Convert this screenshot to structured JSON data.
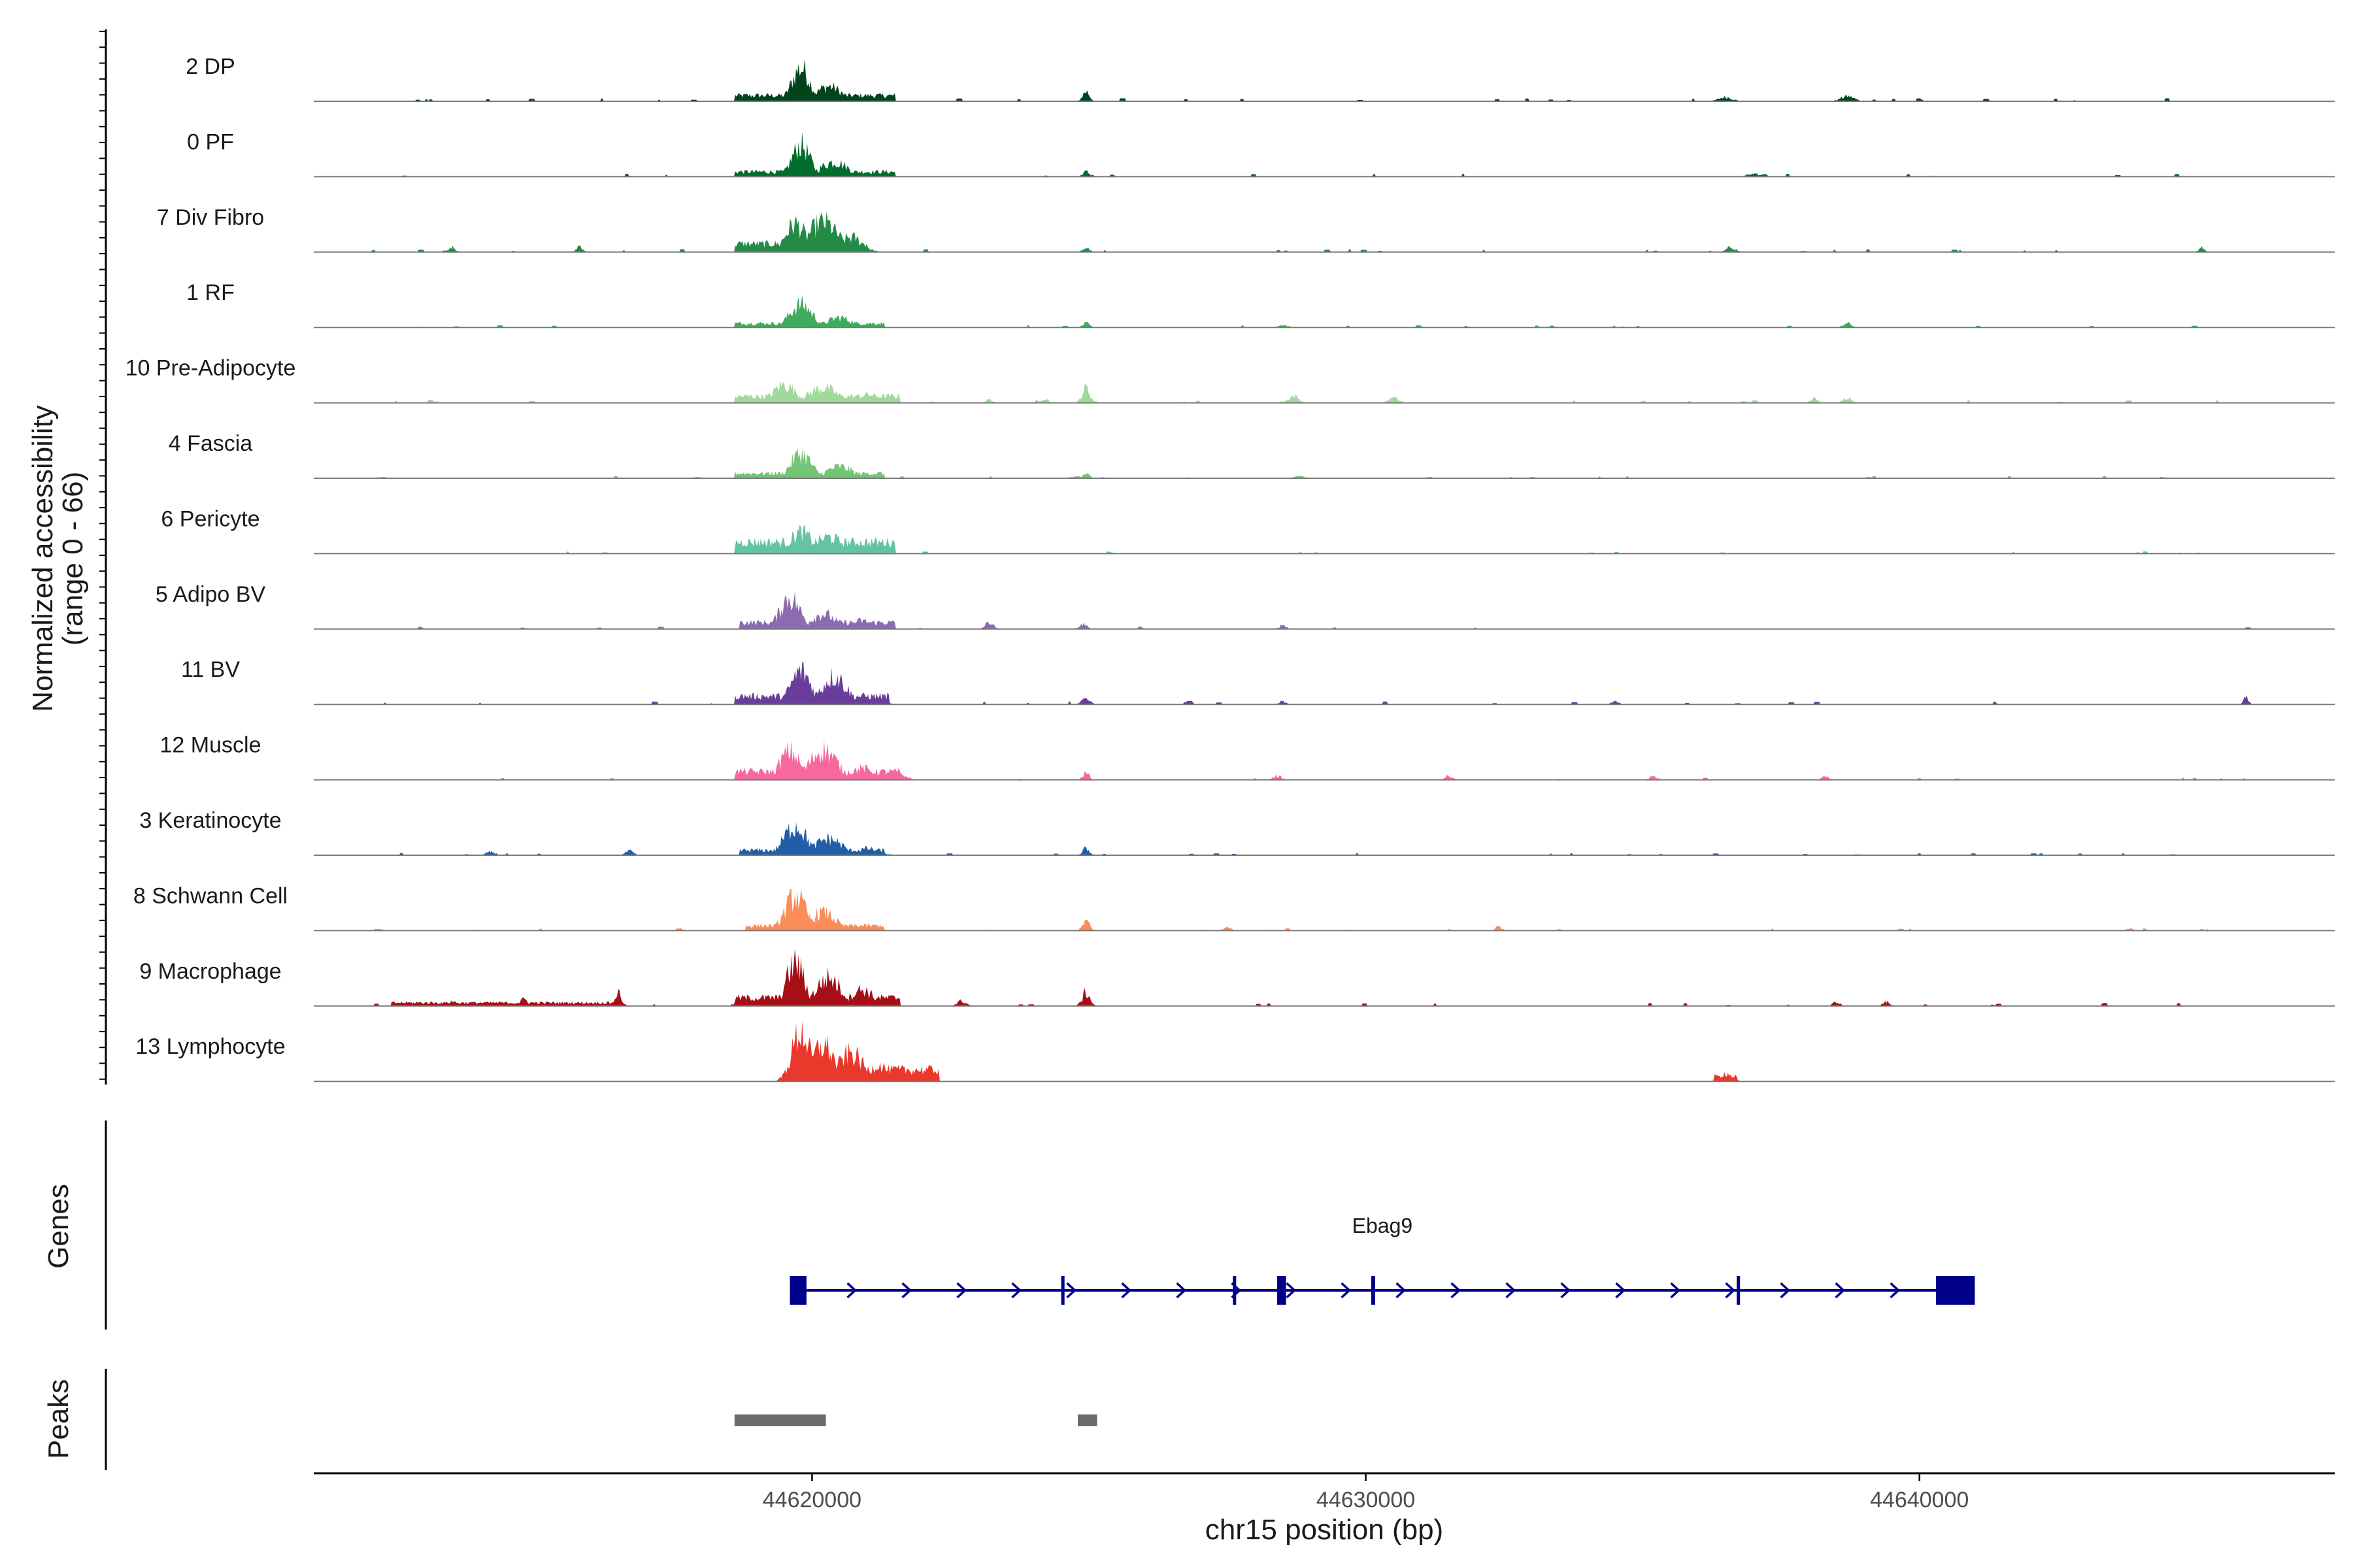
{
  "chart_data": {
    "type": "area",
    "title": "",
    "ylabel_line1": "Normalized accessibility",
    "ylabel_line2": "(range 0 - 66)",
    "y_range": [
      0,
      66
    ],
    "xlabel": "chr15 position (bp)",
    "x_range": [
      44611000,
      44647500
    ],
    "x_ticks": [
      44620000,
      44630000,
      44640000
    ],
    "x_tick_labels": [
      "44620000",
      "44630000",
      "44640000"
    ],
    "tracks": [
      {
        "label": "2 DP",
        "color": "#00441b",
        "peaks": [
          [
            44619800,
            40,
            160
          ],
          [
            44620300,
            18,
            220
          ],
          [
            44621000,
            6,
            180
          ],
          [
            44624950,
            12,
            60
          ],
          [
            44636500,
            5,
            120
          ],
          [
            44638700,
            6,
            120
          ]
        ],
        "regions": [
          [
            44618600,
            44621500,
            7
          ]
        ],
        "scatter": [
          [
            44612000,
            44646000,
            2,
            30
          ]
        ]
      },
      {
        "label": "0 PF",
        "color": "#006d2c",
        "peaks": [
          [
            44619800,
            38,
            160
          ],
          [
            44620400,
            18,
            240
          ],
          [
            44621000,
            5,
            160
          ],
          [
            44624950,
            6,
            60
          ],
          [
            44637000,
            3,
            120
          ]
        ],
        "regions": [
          [
            44618600,
            44621500,
            6
          ]
        ],
        "scatter": [
          [
            44612000,
            44646000,
            2,
            20
          ]
        ]
      },
      {
        "label": "7 Div Fibro",
        "color": "#238b45",
        "peaks": [
          [
            44619700,
            34,
            180
          ],
          [
            44620200,
            36,
            260
          ],
          [
            44620700,
            18,
            200
          ],
          [
            44613500,
            6,
            50
          ],
          [
            44615800,
            8,
            50
          ],
          [
            44624950,
            5,
            60
          ],
          [
            44636600,
            6,
            80
          ],
          [
            44645100,
            5,
            50
          ]
        ],
        "regions": [
          [
            44618600,
            44621000,
            10
          ]
        ],
        "scatter": [
          [
            44612000,
            44646000,
            2,
            28
          ]
        ]
      },
      {
        "label": "1 RF",
        "color": "#41ab5d",
        "peaks": [
          [
            44619800,
            28,
            200
          ],
          [
            44620500,
            12,
            220
          ],
          [
            44621000,
            5,
            160
          ],
          [
            44624950,
            5,
            60
          ],
          [
            44638700,
            5,
            70
          ],
          [
            44628500,
            3,
            80
          ]
        ],
        "regions": [
          [
            44618600,
            44621300,
            5
          ]
        ],
        "scatter": [
          [
            44612000,
            44646000,
            1.5,
            22
          ]
        ]
      },
      {
        "label": "10 Pre-Adipocyte",
        "color": "#a1d99b",
        "peaks": [
          [
            44619500,
            22,
            200
          ],
          [
            44620200,
            18,
            260
          ],
          [
            44621000,
            10,
            200
          ],
          [
            44624950,
            18,
            70
          ],
          [
            44624200,
            6,
            60
          ],
          [
            44628700,
            8,
            90
          ],
          [
            44630500,
            6,
            90
          ],
          [
            44638100,
            5,
            70
          ],
          [
            44638700,
            7,
            70
          ],
          [
            44623200,
            4,
            60
          ]
        ],
        "regions": [
          [
            44618600,
            44621600,
            8
          ]
        ],
        "scatter": [
          [
            44612000,
            44646000,
            2,
            24
          ]
        ]
      },
      {
        "label": "4 Fascia",
        "color": "#74c476",
        "peaks": [
          [
            44619800,
            30,
            180
          ],
          [
            44620500,
            14,
            240
          ],
          [
            44621000,
            5,
            160
          ],
          [
            44624950,
            5,
            60
          ],
          [
            44628800,
            3,
            80
          ]
        ],
        "regions": [
          [
            44618600,
            44621300,
            6
          ]
        ],
        "scatter": [
          [
            44612000,
            44646000,
            1.5,
            22
          ]
        ]
      },
      {
        "label": "6 Pericyte",
        "color": "#66c2a4",
        "peaks": [
          [
            44619800,
            26,
            200
          ],
          [
            44620300,
            20,
            260
          ],
          [
            44621000,
            12,
            200
          ]
        ],
        "regions": [
          [
            44618600,
            44621500,
            14
          ]
        ],
        "scatter": [
          [
            44612000,
            44646000,
            1.5,
            18
          ]
        ]
      },
      {
        "label": "5 Adipo BV",
        "color": "#8c6bb1",
        "peaks": [
          [
            44619600,
            38,
            180
          ],
          [
            44620200,
            18,
            220
          ],
          [
            44620900,
            10,
            200
          ],
          [
            44623200,
            8,
            70
          ],
          [
            44624900,
            6,
            60
          ],
          [
            44628500,
            5,
            60
          ]
        ],
        "regions": [
          [
            44618700,
            44621500,
            8
          ]
        ],
        "scatter": [
          [
            44612000,
            44646000,
            1.5,
            14
          ]
        ]
      },
      {
        "label": "11 BV",
        "color": "#6a3d9a",
        "peaks": [
          [
            44619800,
            40,
            180
          ],
          [
            44620400,
            34,
            220
          ],
          [
            44621000,
            10,
            200
          ],
          [
            44624950,
            8,
            70
          ],
          [
            44626800,
            5,
            60
          ],
          [
            44628500,
            4,
            60
          ],
          [
            44634500,
            4,
            60
          ],
          [
            44645900,
            10,
            40
          ]
        ],
        "regions": [
          [
            44618600,
            44621400,
            10
          ]
        ],
        "scatter": [
          [
            44612000,
            44646000,
            2,
            18
          ]
        ]
      },
      {
        "label": "12 Muscle",
        "color": "#f768a1",
        "peaks": [
          [
            44619600,
            34,
            180
          ],
          [
            44620200,
            36,
            240
          ],
          [
            44620900,
            14,
            200
          ],
          [
            44621600,
            6,
            120
          ],
          [
            44624950,
            8,
            60
          ],
          [
            44628400,
            5,
            70
          ],
          [
            44631500,
            5,
            60
          ],
          [
            44635200,
            4,
            70
          ],
          [
            44638300,
            4,
            60
          ]
        ],
        "regions": [
          [
            44618600,
            44621600,
            10
          ]
        ],
        "scatter": [
          [
            44612000,
            44646000,
            1.5,
            14
          ]
        ]
      },
      {
        "label": "3 Keratinocyte",
        "color": "#225ea8",
        "peaks": [
          [
            44619700,
            36,
            200
          ],
          [
            44620300,
            20,
            240
          ],
          [
            44621000,
            8,
            200
          ],
          [
            44614200,
            4,
            80
          ],
          [
            44616700,
            5,
            70
          ],
          [
            44624950,
            8,
            60
          ]
        ],
        "regions": [
          [
            44618700,
            44621300,
            6
          ]
        ],
        "scatter": [
          [
            44612000,
            44646000,
            1.5,
            26
          ]
        ]
      },
      {
        "label": "8 Schwann Cell",
        "color": "#fc8d59",
        "peaks": [
          [
            44619700,
            42,
            180
          ],
          [
            44620200,
            22,
            220
          ],
          [
            44620800,
            6,
            200
          ],
          [
            44624950,
            12,
            60
          ],
          [
            44627500,
            4,
            70
          ],
          [
            44632400,
            5,
            60
          ],
          [
            44617600,
            3,
            60
          ],
          [
            44643800,
            4,
            50
          ]
        ],
        "regions": [
          [
            44618800,
            44621300,
            6
          ]
        ],
        "scatter": [
          [
            44612000,
            44646000,
            1.5,
            20
          ]
        ]
      },
      {
        "label": "9 Macrophage",
        "color": "#a50f15",
        "peaks": [
          [
            44619700,
            52,
            160
          ],
          [
            44620300,
            34,
            220
          ],
          [
            44620900,
            20,
            200
          ],
          [
            44624950,
            16,
            70
          ],
          [
            44616500,
            16,
            60
          ],
          [
            44613500,
            6,
            80
          ],
          [
            44614800,
            8,
            80
          ],
          [
            44622700,
            6,
            80
          ],
          [
            44638500,
            5,
            60
          ],
          [
            44639400,
            5,
            60
          ]
        ],
        "regions": [
          [
            44618600,
            44621600,
            10
          ],
          [
            44612400,
            44616600,
            4
          ]
        ],
        "scatter": [
          [
            44612000,
            44646000,
            2,
            24
          ]
        ]
      },
      {
        "label": "13 Lymphocyte",
        "color": "#e9382c",
        "peaks": [
          [
            44619800,
            60,
            160
          ],
          [
            44620200,
            44,
            200
          ],
          [
            44620700,
            34,
            220
          ],
          [
            44621200,
            20,
            180
          ],
          [
            44621500,
            10,
            120
          ],
          [
            44636500,
            10,
            110
          ]
        ],
        "regions": [
          [
            44619600,
            44622300,
            14
          ],
          [
            44636300,
            44636700,
            6
          ]
        ],
        "scatter": []
      }
    ]
  },
  "genes_track": {
    "title": "Genes",
    "gene_name": "Ebag9",
    "gene_color": "#00008b",
    "gene_start": 44619600,
    "gene_end": 44641000,
    "exons": [
      [
        44619600,
        44619900
      ],
      [
        44624500,
        44624560
      ],
      [
        44627600,
        44627660
      ],
      [
        44628400,
        44628560
      ],
      [
        44630100,
        44630170
      ],
      [
        44636700,
        44636760
      ],
      [
        44640300,
        44641000
      ]
    ],
    "strand": "+"
  },
  "peaks_track": {
    "title": "Peaks",
    "color": "#6b6b6b",
    "peaks": [
      [
        44618600,
        44620250
      ],
      [
        44624800,
        44625150
      ]
    ]
  }
}
